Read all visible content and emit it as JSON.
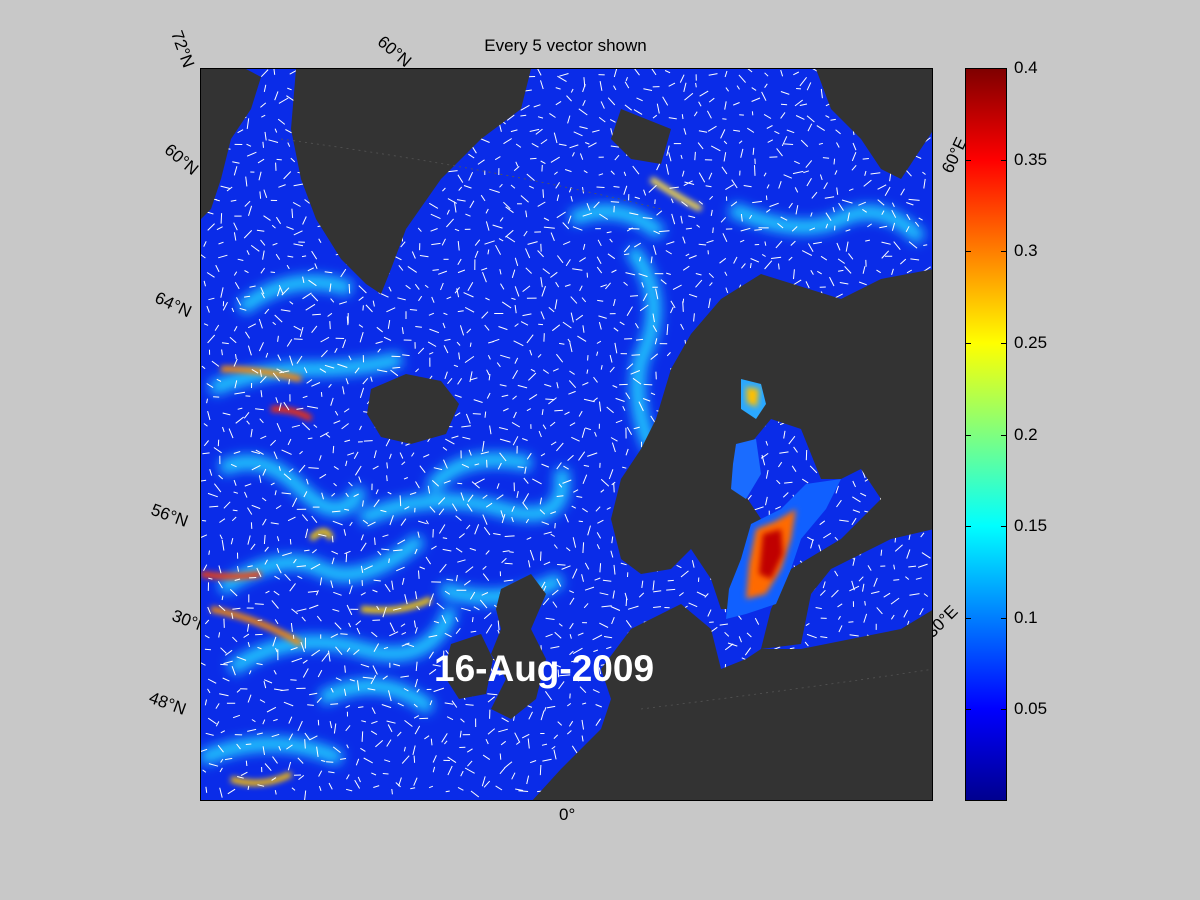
{
  "title": "Every 5 vector shown",
  "date": "16-Aug-2009",
  "graticule": {
    "lat_72": "72°N",
    "lat_60_top": "60°N",
    "lat_60_left": "60°N",
    "lat_64": "64°N",
    "lat_56": "56°N",
    "lat_52": "30°N",
    "lat_48": "48°N",
    "lon_0": "0°",
    "lon_30e": "30°E",
    "lon_60e": "60°E"
  },
  "colorbar": {
    "min": 0,
    "max": 0.4,
    "ticks": [
      "0.4",
      "0.35",
      "0.3",
      "0.25",
      "0.2",
      "0.15",
      "0.1",
      "0.05"
    ],
    "colormap": "jet"
  },
  "colors": {
    "background": "#c8c8c8",
    "land": "#333333",
    "ocean_low": "#0a28e6",
    "ocean_mid": "#00c8ff",
    "ocean_high": "#ffdc00",
    "ocean_max": "#c80000"
  }
}
